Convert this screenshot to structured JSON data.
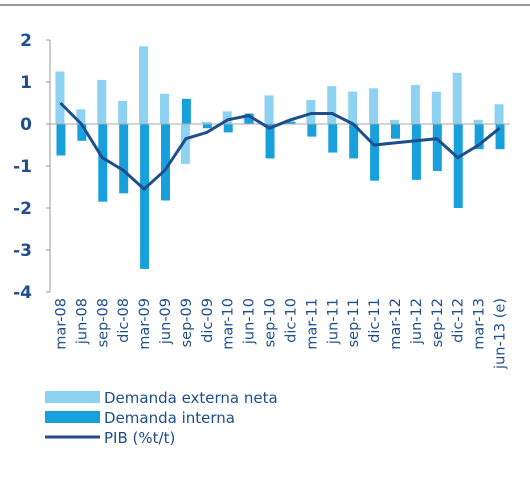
{
  "chart_data": {
    "type": "bar",
    "categories": [
      "mar-08",
      "jun-08",
      "sep-08",
      "dic-08",
      "mar-09",
      "jun-09",
      "sep-09",
      "dic-09",
      "mar-10",
      "jun-10",
      "sep-10",
      "dic-10",
      "mar-11",
      "jun-11",
      "sep-11",
      "dic-11",
      "mar-12",
      "jun-12",
      "sep-12",
      "dic-12",
      "mar-13",
      "jun-13 (e)"
    ],
    "series": [
      {
        "name": "Demanda externa neta",
        "color": "#8dd2f0",
        "values": [
          1.25,
          0.35,
          1.05,
          0.55,
          1.85,
          0.72,
          -0.95,
          0.05,
          0.3,
          0.2,
          0.68,
          0.1,
          0.57,
          0.9,
          0.77,
          0.85,
          0.1,
          0.93,
          0.77,
          1.22,
          0.1,
          0.47
        ]
      },
      {
        "name": "Demanda interna",
        "color": "#18a0dc",
        "values": [
          -0.75,
          -0.4,
          -1.85,
          -1.65,
          -3.45,
          -1.82,
          0.6,
          -0.1,
          -0.2,
          0.25,
          -0.82,
          0.05,
          -0.3,
          -0.68,
          -0.82,
          -1.35,
          -0.35,
          -1.33,
          -1.12,
          -2.0,
          -0.6,
          -0.6
        ]
      },
      {
        "name": "PIB (%t/t)",
        "type": "line",
        "color": "#1f4e8c",
        "values": [
          0.5,
          0.0,
          -0.8,
          -1.1,
          -1.55,
          -1.1,
          -0.35,
          -0.2,
          0.1,
          0.2,
          -0.1,
          0.1,
          0.25,
          0.25,
          0.0,
          -0.5,
          -0.45,
          -0.4,
          -0.35,
          -0.8,
          -0.5,
          -0.1
        ]
      }
    ],
    "ylim": [
      -4,
      2
    ],
    "yticks": [
      -4,
      -3,
      -2,
      -1,
      0,
      1,
      2
    ]
  }
}
